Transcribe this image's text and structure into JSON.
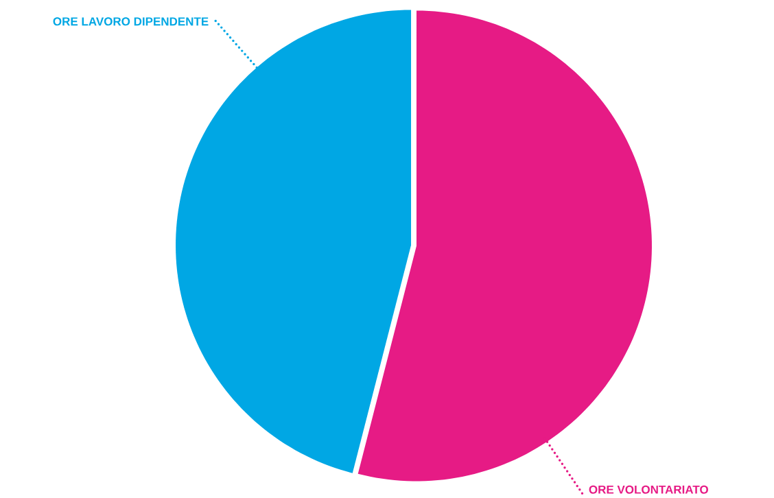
{
  "chart_data": {
    "type": "pie",
    "categories": [
      "ORE VOLONTARIATO",
      "ORE LAVORO DIPENDENTE"
    ],
    "values": [
      54,
      46
    ],
    "colors": [
      "#e61b85",
      "#00a7e4"
    ]
  }
}
